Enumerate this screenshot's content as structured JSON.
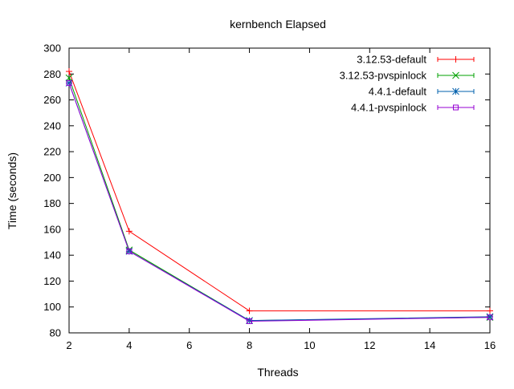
{
  "chart_data": {
    "type": "line",
    "title": "kernbench Elapsed",
    "xlabel": "Threads",
    "ylabel": "Time (seconds)",
    "xlim": [
      2,
      16
    ],
    "ylim": [
      80,
      300
    ],
    "x_ticks": [
      2,
      4,
      6,
      8,
      10,
      12,
      14,
      16
    ],
    "y_ticks": [
      80,
      100,
      120,
      140,
      160,
      180,
      200,
      220,
      240,
      260,
      280,
      300
    ],
    "grid": false,
    "legend_position": "top-right",
    "x": [
      2,
      4,
      8,
      16
    ],
    "series": [
      {
        "name": "3.12.53-default",
        "values": [
          282,
          158.5,
          97,
          97
        ],
        "color": "#ff0000",
        "marker": "plus"
      },
      {
        "name": "3.12.53-pvspinlock",
        "values": [
          277,
          144,
          89.5,
          92
        ],
        "color": "#00a000",
        "marker": "cross"
      },
      {
        "name": "4.4.1-default",
        "values": [
          273,
          143,
          89.5,
          92.5
        ],
        "color": "#0060ad",
        "marker": "star"
      },
      {
        "name": "4.4.1-pvspinlock",
        "values": [
          273,
          143,
          89,
          92
        ],
        "color": "#9400d3",
        "marker": "square"
      }
    ]
  }
}
